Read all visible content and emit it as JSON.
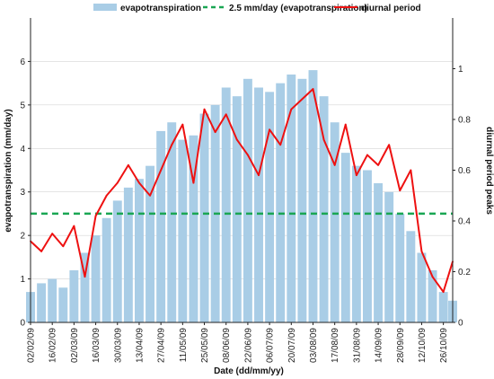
{
  "chart_data": {
    "type": "bar+line",
    "xlabel": "Date (dd/mm/yy)",
    "ylabel_left": "evapotranspiration (mm/day)",
    "ylabel_right": "diurnal period peaks",
    "ylim_left": [
      0,
      7
    ],
    "ylim_right": [
      0,
      1.2
    ],
    "yticks_left": [
      0,
      1,
      2,
      3,
      4,
      5,
      6
    ],
    "yticks_right": [
      0,
      0.2,
      0.4,
      0.6,
      0.8,
      1
    ],
    "x_start": "2009-02-02",
    "x_end": "2009-11-01",
    "x_tick_labels": [
      "02/02/09",
      "16/02/09",
      "02/03/09",
      "16/03/09",
      "30/03/09",
      "13/04/09",
      "27/04/09",
      "11/05/09",
      "25/05/09",
      "08/06/09",
      "22/06/09",
      "06/07/09",
      "20/07/09",
      "03/08/09",
      "17/08/09",
      "31/08/09",
      "14/09/09",
      "28/09/09",
      "12/10/09",
      "26/10/09"
    ],
    "legend_position": "top",
    "series": [
      {
        "name": "evapotranspiration",
        "type": "bar",
        "axis": "left",
        "color": "#a9cde6",
        "x": [
          "2009-02-02",
          "2009-02-09",
          "2009-02-16",
          "2009-02-23",
          "2009-03-02",
          "2009-03-09",
          "2009-03-16",
          "2009-03-23",
          "2009-03-30",
          "2009-04-06",
          "2009-04-13",
          "2009-04-20",
          "2009-04-27",
          "2009-05-04",
          "2009-05-11",
          "2009-05-18",
          "2009-05-25",
          "2009-06-01",
          "2009-06-08",
          "2009-06-15",
          "2009-06-22",
          "2009-06-29",
          "2009-07-06",
          "2009-07-13",
          "2009-07-20",
          "2009-07-27",
          "2009-08-03",
          "2009-08-10",
          "2009-08-17",
          "2009-08-24",
          "2009-08-31",
          "2009-09-07",
          "2009-09-14",
          "2009-09-21",
          "2009-09-28",
          "2009-10-05",
          "2009-10-12",
          "2009-10-19",
          "2009-10-26",
          "2009-11-01"
        ],
        "values": [
          0.7,
          0.9,
          1.0,
          0.8,
          1.2,
          1.6,
          2.0,
          2.4,
          2.8,
          3.1,
          3.3,
          3.6,
          4.4,
          4.6,
          4.2,
          4.3,
          4.8,
          5.0,
          5.4,
          5.2,
          5.6,
          5.4,
          5.3,
          5.5,
          5.7,
          5.6,
          5.8,
          5.2,
          4.6,
          3.9,
          3.6,
          3.5,
          3.2,
          3.0,
          2.5,
          2.1,
          1.6,
          1.2,
          0.7,
          0.5
        ]
      },
      {
        "name": "2.5 mm/day (evapotranspiration)",
        "type": "line",
        "axis": "left",
        "color": "#1aa653",
        "value": 2.5
      },
      {
        "name": "diurnal period",
        "type": "line",
        "axis": "right",
        "color": "#ee1111",
        "x": [
          "2009-02-02",
          "2009-02-09",
          "2009-02-16",
          "2009-02-23",
          "2009-03-02",
          "2009-03-09",
          "2009-03-16",
          "2009-03-23",
          "2009-03-30",
          "2009-04-06",
          "2009-04-13",
          "2009-04-20",
          "2009-04-27",
          "2009-05-04",
          "2009-05-11",
          "2009-05-18",
          "2009-05-25",
          "2009-06-01",
          "2009-06-08",
          "2009-06-15",
          "2009-06-22",
          "2009-06-29",
          "2009-07-06",
          "2009-07-13",
          "2009-07-20",
          "2009-07-27",
          "2009-08-03",
          "2009-08-10",
          "2009-08-17",
          "2009-08-24",
          "2009-08-31",
          "2009-09-07",
          "2009-09-14",
          "2009-09-21",
          "2009-09-28",
          "2009-10-05",
          "2009-10-12",
          "2009-10-19",
          "2009-10-26",
          "2009-11-01"
        ],
        "values": [
          0.32,
          0.28,
          0.35,
          0.3,
          0.38,
          0.18,
          0.42,
          0.5,
          0.55,
          0.62,
          0.55,
          0.5,
          0.6,
          0.7,
          0.78,
          0.55,
          0.84,
          0.75,
          0.82,
          0.72,
          0.66,
          0.58,
          0.76,
          0.7,
          0.84,
          0.88,
          0.92,
          0.72,
          0.62,
          0.78,
          0.58,
          0.66,
          0.62,
          0.7,
          0.52,
          0.6,
          0.28,
          0.18,
          0.12,
          0.24
        ]
      }
    ]
  }
}
